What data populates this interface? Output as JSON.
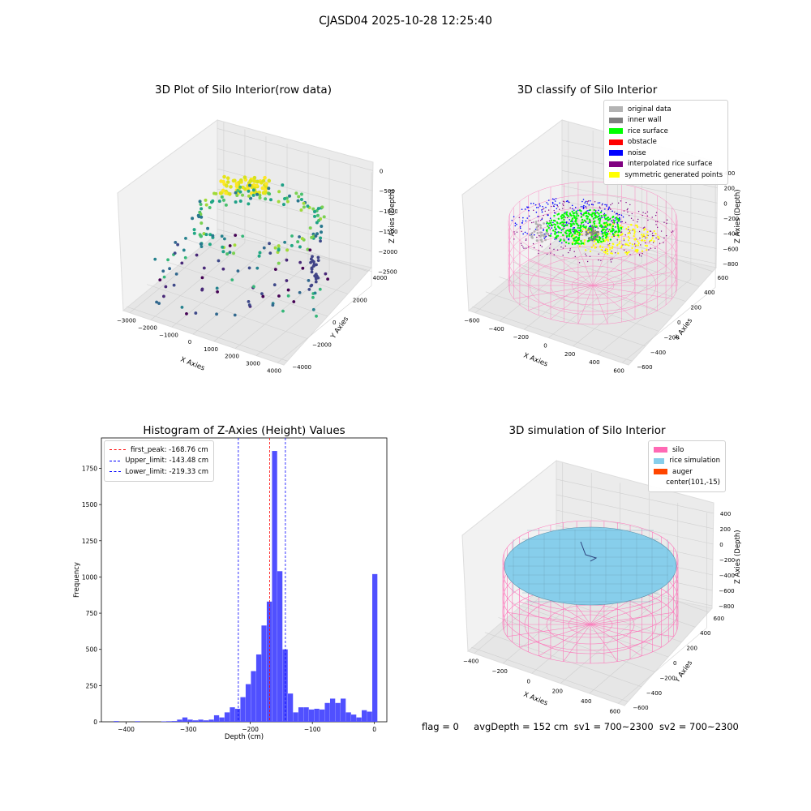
{
  "suptitle": "CJASD04 2025-10-28 12:25:40",
  "footer": {
    "flag": "flag = 0",
    "avg": "avgDepth = 152 cm",
    "sv1": "sv1 = 700~2300",
    "sv2": "sv2 = 700~2300"
  },
  "colors": {
    "original": "#b3b3b3",
    "inner_wall": "#7f7f7f",
    "rice_surface": "#00ff00",
    "obstacle": "#ff0000",
    "noise": "#0000ff",
    "interpolated": "#800080",
    "symmetric": "#ffff00",
    "silo": "#ff69b4",
    "rice_sim": "#87ceeb",
    "auger": "#ff4500",
    "hist": "#5050ff",
    "peak_line": "#ff0000",
    "limit_line": "#0000ff"
  },
  "chart_data": [
    {
      "type": "scatter",
      "title": "3D Plot of Silo Interior(row data)",
      "xlabel": "X Axies",
      "ylabel": "Y Axies",
      "zlabel": "Z Axies (Depth)",
      "x_ticks": [
        "−3000",
        "−2000",
        "−1000",
        "0",
        "1000",
        "2000",
        "3000",
        "4000"
      ],
      "y_ticks": [
        "−4000",
        "−2000",
        "0",
        "2000",
        "4000"
      ],
      "z_ticks": [
        "−2500",
        "−2000",
        "−1500",
        "−1000",
        "−500",
        "0"
      ],
      "xlim": [
        -3000,
        4000
      ],
      "ylim": [
        -4000,
        4000
      ],
      "zlim": [
        -2500,
        0
      ]
    },
    {
      "type": "scatter",
      "title": "3D classify of Silo Interior",
      "xlabel": "X Axies",
      "ylabel": "Y Axies",
      "zlabel": "Z Axies (Depth)",
      "x_ticks": [
        "−600",
        "−400",
        "−200",
        "0",
        "200",
        "400",
        "600"
      ],
      "y_ticks": [
        "−600",
        "−400",
        "−200",
        "0",
        "200",
        "400",
        "600"
      ],
      "z_ticks": [
        "−800",
        "−600",
        "−400",
        "−200",
        "0",
        "200",
        "400"
      ],
      "legend": [
        "original data",
        "inner wall",
        "rice surface",
        "obstacle",
        "noise",
        "interpolated rice surface",
        "symmetric generated points"
      ]
    },
    {
      "type": "bar",
      "title": "Histogram of Z-Axies (Height) Values",
      "xlabel": "Depth (cm)",
      "ylabel": "Frequency",
      "xlim": [
        -440,
        20
      ],
      "ylim": [
        0,
        1960
      ],
      "x_ticks": [
        -400,
        -300,
        -200,
        -100,
        0
      ],
      "x_tick_labels": [
        "−400",
        "−300",
        "−200",
        "−100",
        "0"
      ],
      "y_ticks": [
        0,
        250,
        500,
        750,
        1000,
        1250,
        1500,
        1750
      ],
      "y_tick_labels": [
        "0",
        "250",
        "500",
        "750",
        "1000",
        "1250",
        "1500",
        "1750"
      ],
      "bin_width": 8.5,
      "bins": [
        [
          -420,
          5
        ],
        [
          -411.5,
          0
        ],
        [
          -403,
          0
        ],
        [
          -394.5,
          0
        ],
        [
          -386,
          4
        ],
        [
          -377.5,
          0
        ],
        [
          -369,
          0
        ],
        [
          -360.5,
          0
        ],
        [
          -352,
          0
        ],
        [
          -343.5,
          3
        ],
        [
          -335,
          4
        ],
        [
          -326.5,
          5
        ],
        [
          -318,
          15
        ],
        [
          -309.5,
          30
        ],
        [
          -301,
          15
        ],
        [
          -292.5,
          10
        ],
        [
          -284,
          15
        ],
        [
          -275.5,
          10
        ],
        [
          -267,
          15
        ],
        [
          -258.5,
          45
        ],
        [
          -250,
          30
        ],
        [
          -241.5,
          65
        ],
        [
          -233,
          100
        ],
        [
          -224.5,
          90
        ],
        [
          -216,
          170
        ],
        [
          -207.5,
          260
        ],
        [
          -199,
          350
        ],
        [
          -190.5,
          465
        ],
        [
          -182,
          665
        ],
        [
          -173.5,
          830
        ],
        [
          -165,
          1870
        ],
        [
          -156.5,
          1040
        ],
        [
          -148,
          500
        ],
        [
          -139.5,
          195
        ],
        [
          -131,
          65
        ],
        [
          -122.5,
          100
        ],
        [
          -114,
          100
        ],
        [
          -105.5,
          85
        ],
        [
          -97,
          90
        ],
        [
          -88.5,
          85
        ],
        [
          -80,
          130
        ],
        [
          -71.5,
          160
        ],
        [
          -63,
          130
        ],
        [
          -54.5,
          160
        ],
        [
          -46,
          65
        ],
        [
          -37.5,
          50
        ],
        [
          -29,
          30
        ],
        [
          -20.5,
          80
        ],
        [
          -12,
          70
        ],
        [
          -3.5,
          1020
        ]
      ],
      "lines": [
        {
          "label": "first_peak: -168.76 cm",
          "value": -168.76,
          "style": "peak"
        },
        {
          "label": "Upper_limit: -143.48 cm",
          "value": -143.48,
          "style": "limit"
        },
        {
          "label": "Lower_limit: -219.33 cm",
          "value": -219.33,
          "style": "limit"
        }
      ]
    },
    {
      "type": "scatter",
      "title": "3D simulation of Silo Interior",
      "xlabel": "X Axies",
      "ylabel": "Y Axies",
      "zlabel": "Z Axies (Depth)",
      "x_ticks": [
        "−400",
        "−200",
        "0",
        "200",
        "400",
        "600"
      ],
      "y_ticks": [
        "−600",
        "−400",
        "−200",
        "0",
        "200",
        "400",
        "600"
      ],
      "z_ticks": [
        "−800",
        "−600",
        "−400",
        "−200",
        "0",
        "200",
        "400"
      ],
      "legend": [
        "silo",
        "rice simulation",
        "auger",
        "center(101,-15)"
      ]
    }
  ]
}
